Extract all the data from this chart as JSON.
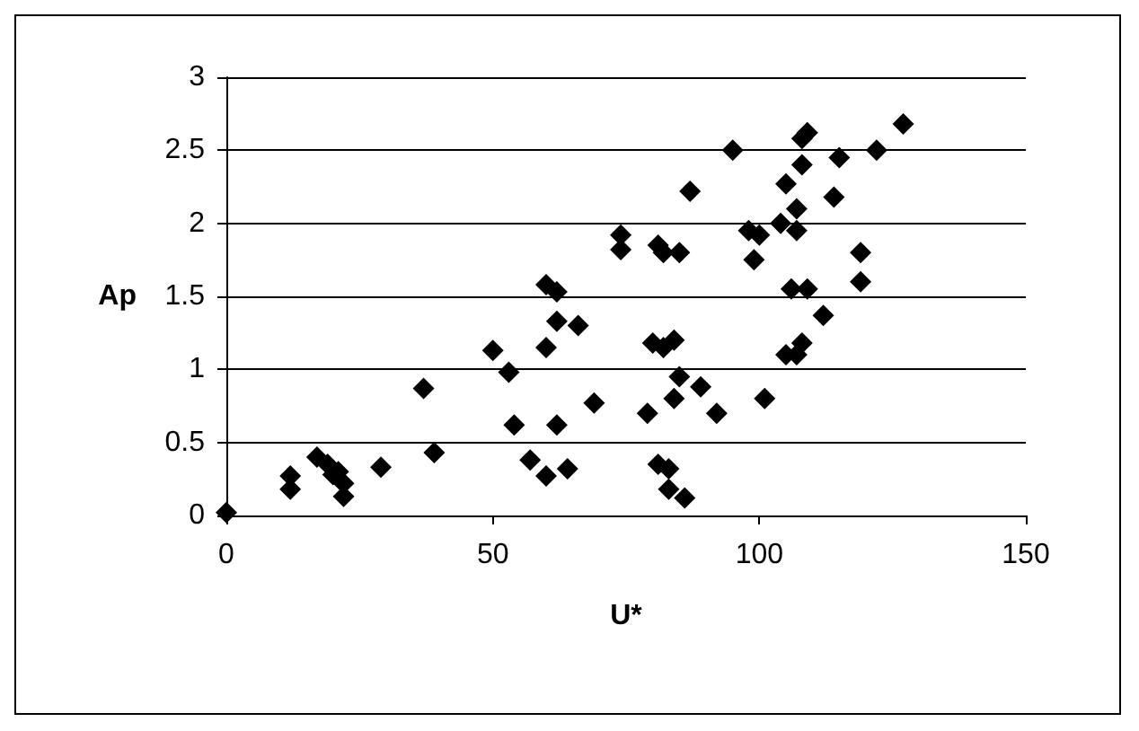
{
  "chart_data": {
    "type": "scatter",
    "xlabel": "U*",
    "ylabel": "Ap",
    "x": [
      0,
      12,
      12,
      17,
      19,
      20,
      21,
      22,
      22,
      29,
      37,
      39,
      50,
      53,
      54,
      57,
      60,
      60,
      60,
      62,
      62,
      62,
      64,
      66,
      69,
      74,
      74,
      79,
      80,
      81,
      81,
      82,
      82,
      83,
      83,
      84,
      84,
      85,
      85,
      86,
      87,
      89,
      92,
      95,
      98,
      99,
      100,
      101,
      104,
      105,
      105,
      106,
      107,
      107,
      108,
      108,
      108,
      109,
      109,
      112,
      114,
      115,
      119,
      119,
      122,
      127,
      107
    ],
    "values": [
      0.02,
      0.27,
      0.18,
      0.4,
      0.35,
      0.28,
      0.3,
      0.22,
      0.13,
      0.33,
      0.87,
      0.43,
      1.13,
      0.98,
      0.62,
      0.38,
      0.27,
      1.15,
      1.58,
      1.53,
      1.33,
      0.62,
      0.32,
      1.3,
      0.77,
      1.92,
      1.82,
      0.7,
      1.18,
      0.35,
      1.85,
      1.8,
      1.15,
      0.18,
      0.32,
      0.8,
      1.2,
      0.95,
      1.8,
      0.12,
      2.22,
      0.88,
      0.7,
      2.5,
      1.95,
      1.75,
      1.92,
      0.8,
      2.0,
      2.27,
      1.1,
      1.55,
      2.1,
      1.95,
      1.18,
      2.4,
      2.58,
      2.62,
      1.55,
      1.37,
      2.18,
      2.45,
      1.8,
      1.6,
      2.5,
      2.68,
      1.1
    ],
    "color": "#000000",
    "marker": "diamond",
    "xlim": [
      0,
      150
    ],
    "xticks": [
      0,
      50,
      100,
      150
    ],
    "ylim": [
      0,
      3
    ],
    "yticks": [
      0,
      0.5,
      1,
      1.5,
      2,
      2.5,
      3
    ],
    "grid": "y"
  }
}
